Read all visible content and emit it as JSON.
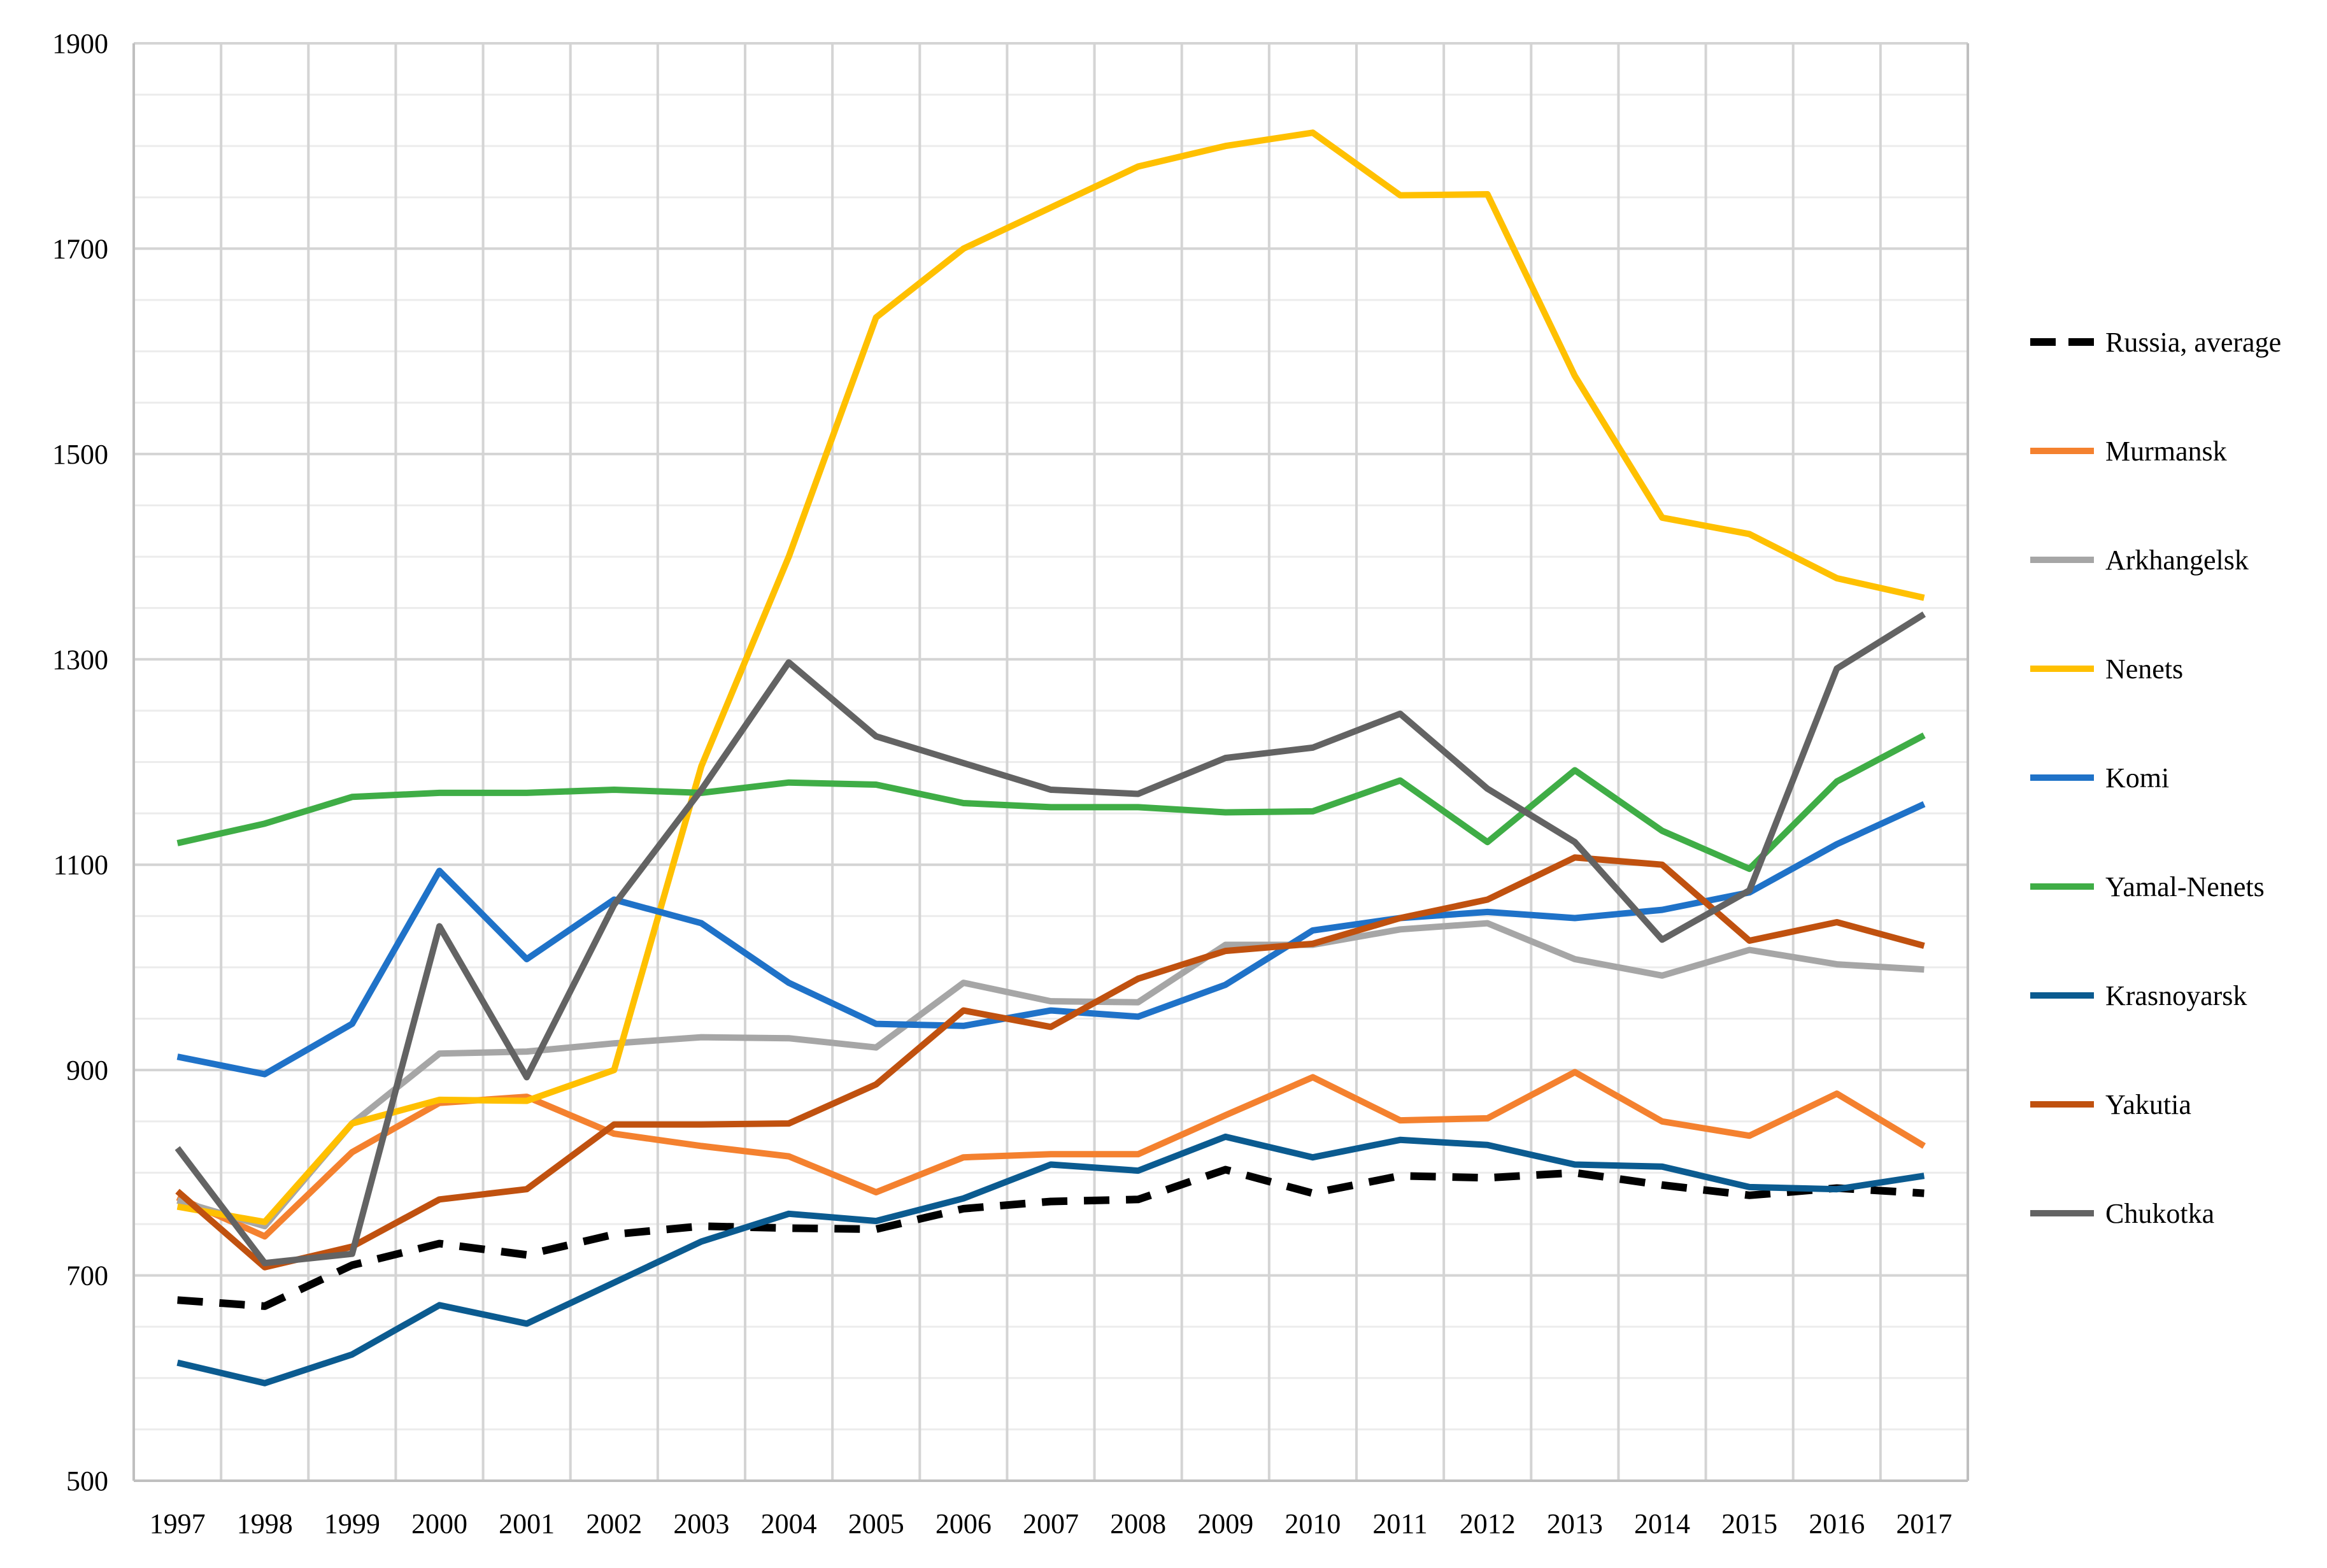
{
  "chart_data": {
    "type": "line",
    "title": "",
    "xlabel": "",
    "ylabel": "",
    "ylim": [
      500,
      1900
    ],
    "y_major_step": 200,
    "y_minor_step": 50,
    "grid": true,
    "legend_position": "right",
    "categories": [
      "1997",
      "1998",
      "1999",
      "2000",
      "2001",
      "2002",
      "2003",
      "2004",
      "2005",
      "2006",
      "2007",
      "2008",
      "2009",
      "2010",
      "2011",
      "2012",
      "2013",
      "2014",
      "2015",
      "2016",
      "2017"
    ],
    "y_tick_labels": [
      "1900",
      "1700",
      "1500",
      "1300",
      "1100",
      "900",
      "700",
      "500"
    ],
    "series": [
      {
        "name": "Russia, average",
        "color": "#000000",
        "dashed": true,
        "values": [
          676,
          670,
          710,
          731,
          720,
          740,
          748,
          746,
          745,
          765,
          772,
          774,
          803,
          780,
          797,
          795,
          800,
          788,
          778,
          785,
          780
        ]
      },
      {
        "name": "Murmansk",
        "color": "#F4812F",
        "dashed": false,
        "values": [
          776,
          738,
          820,
          868,
          874,
          838,
          826,
          816,
          781,
          815,
          818,
          818,
          856,
          893,
          851,
          853,
          898,
          850,
          836,
          877,
          826
        ]
      },
      {
        "name": "Arkhangelsk",
        "color": "#A6A6A6",
        "dashed": false,
        "values": [
          773,
          748,
          848,
          916,
          918,
          926,
          932,
          931,
          922,
          985,
          967,
          966,
          1022,
          1022,
          1037,
          1043,
          1008,
          992,
          1017,
          1003,
          998
        ]
      },
      {
        "name": "Nenets",
        "color": "#FFC000",
        "dashed": false,
        "values": [
          767,
          752,
          848,
          871,
          870,
          900,
          1196,
          1400,
          1633,
          1700,
          1740,
          1780,
          1800,
          1813,
          1752,
          1753,
          1576,
          1438,
          1422,
          1379,
          1360
        ]
      },
      {
        "name": "Komi",
        "color": "#1F72C8",
        "dashed": false,
        "values": [
          913,
          896,
          945,
          1094,
          1008,
          1066,
          1043,
          985,
          945,
          943,
          958,
          952,
          983,
          1036,
          1048,
          1054,
          1048,
          1056,
          1073,
          1120,
          1159
        ]
      },
      {
        "name": "Yamal-Nenets",
        "color": "#3FAD46",
        "dashed": false,
        "values": [
          1121,
          1140,
          1166,
          1170,
          1170,
          1173,
          1170,
          1180,
          1178,
          1160,
          1156,
          1156,
          1151,
          1152,
          1182,
          1122,
          1192,
          1133,
          1096,
          1181,
          1226
        ]
      },
      {
        "name": "Krasnoyarsk",
        "color": "#0B5B90",
        "dashed": false,
        "values": [
          615,
          595,
          623,
          671,
          653,
          693,
          733,
          760,
          753,
          775,
          808,
          802,
          835,
          815,
          832,
          827,
          808,
          806,
          786,
          784,
          797
        ]
      },
      {
        "name": "Yakutia",
        "color": "#C0510F",
        "dashed": false,
        "values": [
          782,
          708,
          728,
          774,
          784,
          847,
          847,
          848,
          886,
          958,
          942,
          989,
          1016,
          1023,
          1048,
          1066,
          1107,
          1100,
          1026,
          1044,
          1021
        ]
      },
      {
        "name": "Chukotka",
        "color": "#636363",
        "dashed": false,
        "values": [
          824,
          712,
          721,
          1040,
          893,
          1061,
          1173,
          1297,
          1225,
          1199,
          1173,
          1169,
          1204,
          1214,
          1247,
          1174,
          1122,
          1027,
          1075,
          1291,
          1344
        ]
      }
    ]
  }
}
